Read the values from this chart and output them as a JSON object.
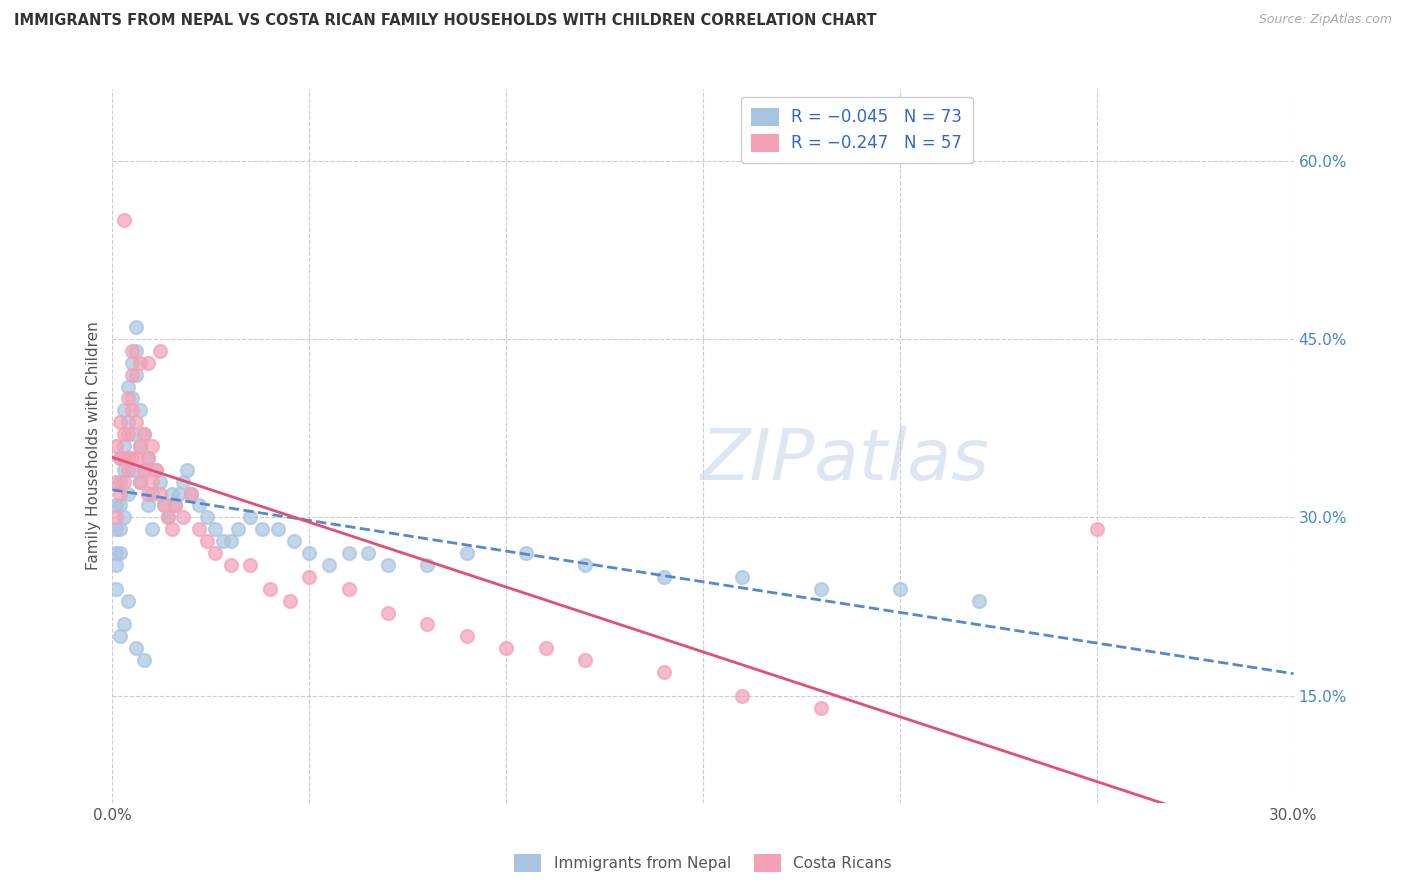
{
  "title": "IMMIGRANTS FROM NEPAL VS COSTA RICAN FAMILY HOUSEHOLDS WITH CHILDREN CORRELATION CHART",
  "source": "Source: ZipAtlas.com",
  "ylabel": "Family Households with Children",
  "xlim": [
    0.0,
    0.3
  ],
  "ylim": [
    0.06,
    0.66
  ],
  "x_ticks": [
    0.0,
    0.05,
    0.1,
    0.15,
    0.2,
    0.25,
    0.3
  ],
  "x_tick_labels": [
    "0.0%",
    "",
    "",
    "",
    "",
    "",
    "30.0%"
  ],
  "y_ticks_right": [
    0.15,
    0.3,
    0.45,
    0.6
  ],
  "y_tick_labels_right": [
    "15.0%",
    "30.0%",
    "45.0%",
    "60.0%"
  ],
  "nepal_color": "#a8c4e0",
  "costa_color": "#f4a0b5",
  "nepal_R": -0.045,
  "nepal_N": 73,
  "costa_R": -0.247,
  "costa_N": 57,
  "nepal_x": [
    0.001,
    0.001,
    0.001,
    0.001,
    0.001,
    0.002,
    0.002,
    0.002,
    0.002,
    0.002,
    0.003,
    0.003,
    0.003,
    0.003,
    0.004,
    0.004,
    0.004,
    0.004,
    0.005,
    0.005,
    0.005,
    0.005,
    0.006,
    0.006,
    0.006,
    0.007,
    0.007,
    0.007,
    0.008,
    0.008,
    0.009,
    0.009,
    0.01,
    0.01,
    0.011,
    0.012,
    0.013,
    0.014,
    0.015,
    0.016,
    0.017,
    0.018,
    0.019,
    0.02,
    0.022,
    0.024,
    0.026,
    0.028,
    0.03,
    0.032,
    0.035,
    0.038,
    0.042,
    0.046,
    0.05,
    0.055,
    0.06,
    0.065,
    0.07,
    0.08,
    0.09,
    0.105,
    0.12,
    0.14,
    0.16,
    0.18,
    0.2,
    0.22,
    0.002,
    0.003,
    0.004,
    0.006,
    0.008
  ],
  "nepal_y": [
    0.31,
    0.29,
    0.27,
    0.26,
    0.24,
    0.35,
    0.33,
    0.31,
    0.29,
    0.27,
    0.39,
    0.36,
    0.34,
    0.3,
    0.41,
    0.38,
    0.35,
    0.32,
    0.43,
    0.4,
    0.37,
    0.34,
    0.46,
    0.44,
    0.42,
    0.39,
    0.36,
    0.33,
    0.37,
    0.34,
    0.35,
    0.31,
    0.32,
    0.29,
    0.34,
    0.33,
    0.31,
    0.3,
    0.32,
    0.31,
    0.32,
    0.33,
    0.34,
    0.32,
    0.31,
    0.3,
    0.29,
    0.28,
    0.28,
    0.29,
    0.3,
    0.29,
    0.29,
    0.28,
    0.27,
    0.26,
    0.27,
    0.27,
    0.26,
    0.26,
    0.27,
    0.27,
    0.26,
    0.25,
    0.25,
    0.24,
    0.24,
    0.23,
    0.2,
    0.21,
    0.23,
    0.19,
    0.18
  ],
  "costa_x": [
    0.001,
    0.001,
    0.001,
    0.002,
    0.002,
    0.002,
    0.003,
    0.003,
    0.003,
    0.004,
    0.004,
    0.004,
    0.005,
    0.005,
    0.005,
    0.006,
    0.006,
    0.007,
    0.007,
    0.008,
    0.008,
    0.009,
    0.009,
    0.01,
    0.01,
    0.011,
    0.012,
    0.013,
    0.014,
    0.015,
    0.016,
    0.018,
    0.02,
    0.022,
    0.024,
    0.026,
    0.03,
    0.035,
    0.04,
    0.045,
    0.05,
    0.06,
    0.07,
    0.08,
    0.09,
    0.1,
    0.11,
    0.12,
    0.14,
    0.16,
    0.18,
    0.25,
    0.003,
    0.005,
    0.007,
    0.009,
    0.012
  ],
  "costa_y": [
    0.36,
    0.33,
    0.3,
    0.38,
    0.35,
    0.32,
    0.37,
    0.35,
    0.33,
    0.4,
    0.37,
    0.34,
    0.42,
    0.39,
    0.35,
    0.38,
    0.35,
    0.36,
    0.33,
    0.37,
    0.34,
    0.35,
    0.32,
    0.36,
    0.33,
    0.34,
    0.32,
    0.31,
    0.3,
    0.29,
    0.31,
    0.3,
    0.32,
    0.29,
    0.28,
    0.27,
    0.26,
    0.26,
    0.24,
    0.23,
    0.25,
    0.24,
    0.22,
    0.21,
    0.2,
    0.19,
    0.19,
    0.18,
    0.17,
    0.15,
    0.14,
    0.29,
    0.55,
    0.44,
    0.43,
    0.43,
    0.44
  ],
  "watermark_text": "ZIPatlas",
  "bottom_legend_nepal": "Immigrants from Nepal",
  "bottom_legend_costa": "Costa Ricans"
}
